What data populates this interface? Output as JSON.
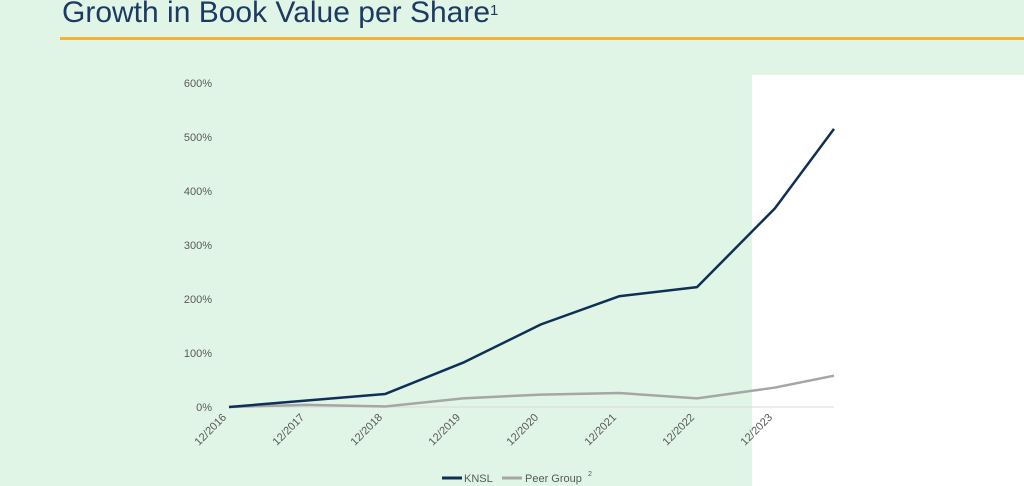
{
  "header": {
    "title": "Growth in Book Value per Share",
    "title_sup": "1"
  },
  "colors": {
    "background": "#e1f5e6",
    "accent": "#f7b22e",
    "knsl": "#0f2f57",
    "peer": "#a6a6a6"
  },
  "chart_data": {
    "type": "line",
    "title": "Growth in Book Value per Share",
    "categories": [
      "12/2016",
      "12/2017",
      "12/2018",
      "12/2019",
      "12/2020",
      "12/2021",
      "12/2022",
      "12/2023",
      ""
    ],
    "series": [
      {
        "name": "KNSL",
        "values": [
          0,
          12,
          24,
          82,
          153,
          205,
          222,
          368,
          515
        ]
      },
      {
        "name": "Peer Group",
        "name_sup": "2",
        "values": [
          0,
          4,
          1,
          16,
          23,
          26,
          16,
          36,
          58
        ]
      }
    ],
    "yticks": [
      "0%",
      "100%",
      "200%",
      "300%",
      "400%",
      "500%",
      "600%"
    ],
    "ylim": [
      0,
      600
    ],
    "grid": false,
    "legend": "bottom"
  }
}
